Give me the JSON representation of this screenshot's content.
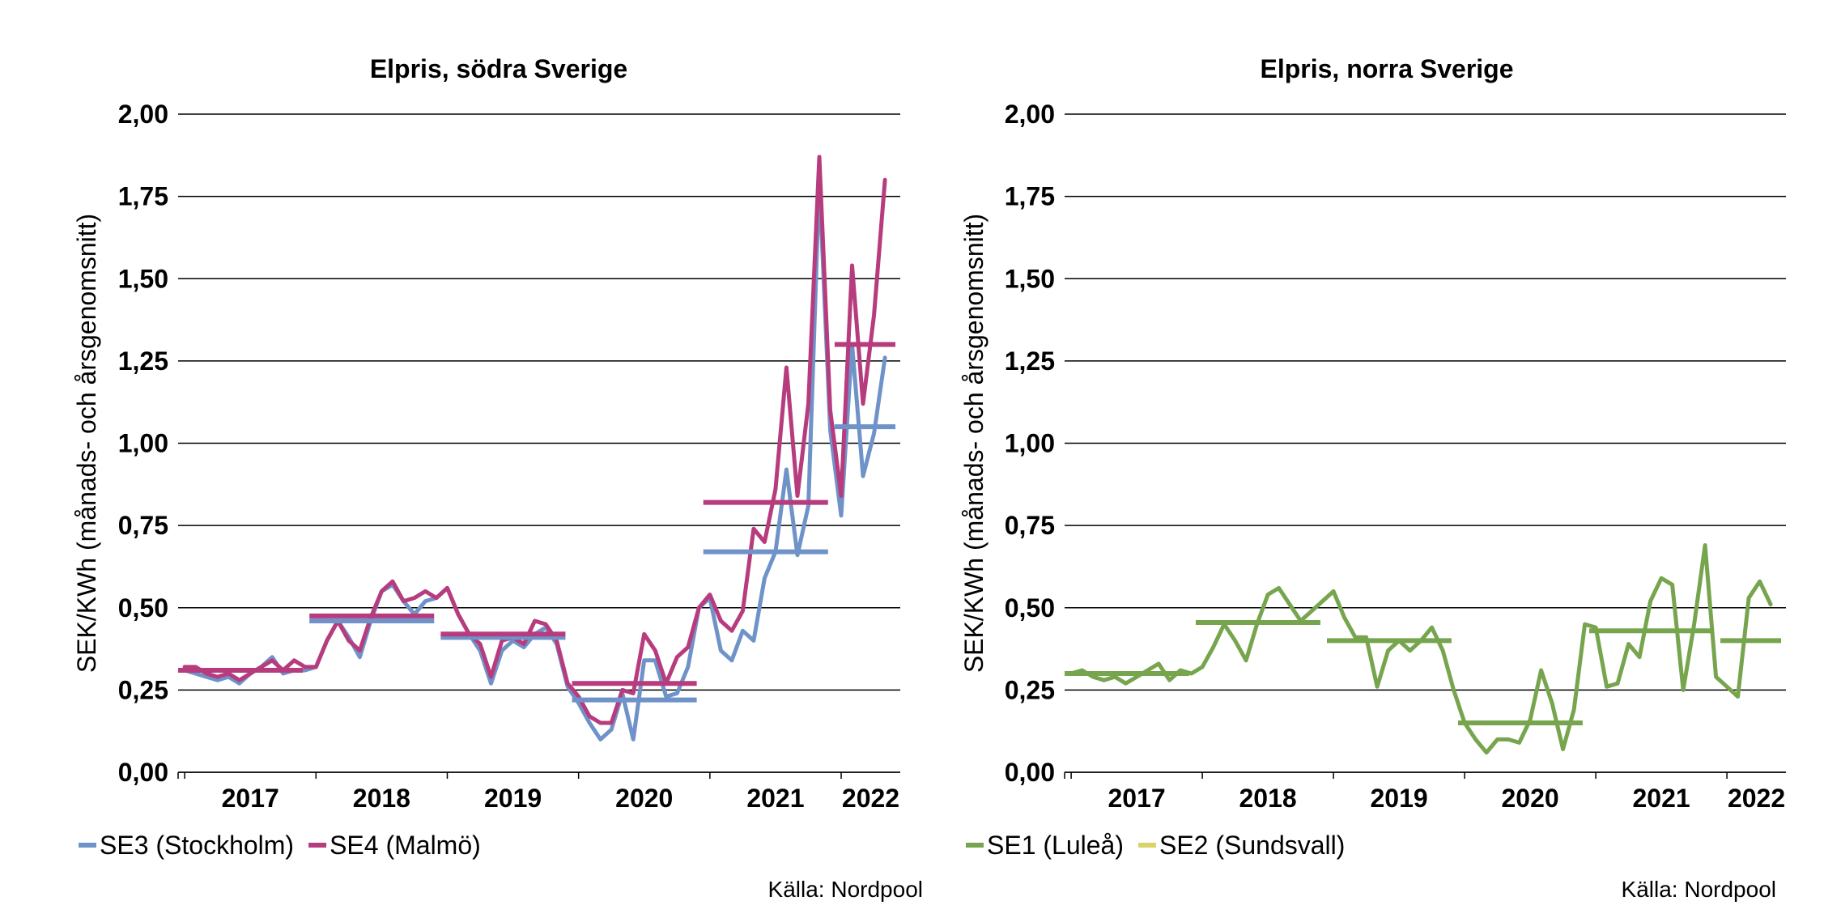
{
  "chart_data": [
    {
      "type": "line",
      "title": "Elpris, södra Sverige",
      "ylabel": "SEK/KWh (månads- och årsgenomsnitt)",
      "xlabel": "",
      "ylim": [
        0,
        2.0
      ],
      "y_ticks": [
        "0,00",
        "0,25",
        "0,50",
        "0,75",
        "1,00",
        "1,25",
        "1,50",
        "1,75",
        "2,00"
      ],
      "x_range": [
        2016.95,
        2022.45
      ],
      "x_ticks": [
        "2017",
        "2018",
        "2019",
        "2020",
        "2021",
        "2022"
      ],
      "grid": true,
      "legend_position": "bottom-left",
      "source": "Källa: Nordpool",
      "series": [
        {
          "name": "SE3 (Stockholm)",
          "color": "#6f93c9",
          "monthly": [
            0.31,
            0.3,
            0.29,
            0.28,
            0.29,
            0.27,
            0.3,
            0.32,
            0.35,
            0.3,
            0.31,
            0.31,
            0.32,
            0.4,
            0.46,
            0.41,
            0.35,
            0.46,
            0.55,
            0.57,
            0.52,
            0.48,
            0.52,
            0.53,
            0.56,
            0.48,
            0.42,
            0.37,
            0.27,
            0.37,
            0.4,
            0.38,
            0.42,
            0.44,
            0.39,
            0.26,
            0.21,
            0.15,
            0.1,
            0.13,
            0.24,
            0.1,
            0.34,
            0.34,
            0.23,
            0.24,
            0.32,
            0.5,
            0.53,
            0.37,
            0.34,
            0.43,
            0.4,
            0.59,
            0.67,
            0.92,
            0.66,
            0.81,
            1.8,
            1.04,
            0.78,
            1.3,
            0.9,
            1.03,
            1.26
          ],
          "yearly": [
            {
              "year": 2017,
              "value": 0.31
            },
            {
              "year": 2018,
              "value": 0.46
            },
            {
              "year": 2019,
              "value": 0.41
            },
            {
              "year": 2020,
              "value": 0.22
            },
            {
              "year": 2021,
              "value": 0.67
            },
            {
              "year": 2022,
              "value": 1.05
            }
          ]
        },
        {
          "name": "SE4 (Malmö)",
          "color": "#b73c7e",
          "monthly": [
            0.32,
            0.32,
            0.3,
            0.29,
            0.3,
            0.28,
            0.3,
            0.32,
            0.34,
            0.31,
            0.34,
            0.32,
            0.32,
            0.4,
            0.46,
            0.4,
            0.37,
            0.47,
            0.55,
            0.58,
            0.52,
            0.53,
            0.55,
            0.53,
            0.56,
            0.48,
            0.42,
            0.39,
            0.29,
            0.4,
            0.41,
            0.39,
            0.46,
            0.45,
            0.4,
            0.27,
            0.23,
            0.17,
            0.15,
            0.15,
            0.25,
            0.24,
            0.42,
            0.37,
            0.27,
            0.35,
            0.38,
            0.5,
            0.54,
            0.46,
            0.43,
            0.49,
            0.74,
            0.7,
            0.86,
            1.23,
            0.84,
            1.12,
            1.87,
            1.1,
            0.84,
            1.54,
            1.12,
            1.39,
            1.8
          ],
          "yearly": [
            {
              "year": 2017,
              "value": 0.31
            },
            {
              "year": 2018,
              "value": 0.475
            },
            {
              "year": 2019,
              "value": 0.42
            },
            {
              "year": 2020,
              "value": 0.27
            },
            {
              "year": 2021,
              "value": 0.82
            },
            {
              "year": 2022,
              "value": 1.3
            }
          ]
        }
      ]
    },
    {
      "type": "line",
      "title": "Elpris, norra Sverige",
      "ylabel": "SEK/KWh (månads- och årsgenomsnitt)",
      "xlabel": "",
      "ylim": [
        0,
        2.0
      ],
      "y_ticks": [
        "0,00",
        "0,25",
        "0,50",
        "0,75",
        "1,00",
        "1,25",
        "1,50",
        "1,75",
        "2,00"
      ],
      "x_range": [
        2016.95,
        2022.45
      ],
      "x_ticks": [
        "2017",
        "2018",
        "2019",
        "2020",
        "2021",
        "2022"
      ],
      "grid": true,
      "legend_position": "bottom-left",
      "source": "Källa: Nordpool",
      "series": [
        {
          "name": "SE1 (Luleå)",
          "color": "#77a54e",
          "monthly": [
            0.3,
            0.31,
            0.29,
            0.28,
            0.29,
            0.27,
            0.29,
            0.31,
            0.33,
            0.28,
            0.31,
            0.3,
            0.32,
            0.38,
            0.45,
            0.4,
            0.34,
            0.45,
            0.54,
            0.56,
            0.51,
            0.46,
            0.49,
            0.52,
            0.55,
            0.47,
            0.41,
            0.41,
            0.26,
            0.37,
            0.4,
            0.37,
            0.4,
            0.44,
            0.37,
            0.25,
            0.15,
            0.1,
            0.06,
            0.1,
            0.1,
            0.09,
            0.16,
            0.31,
            0.21,
            0.07,
            0.19,
            0.45,
            0.44,
            0.26,
            0.27,
            0.39,
            0.35,
            0.52,
            0.59,
            0.57,
            0.25,
            0.45,
            0.69,
            0.29,
            0.26,
            0.23,
            0.53,
            0.58,
            0.51
          ],
          "yearly": [
            {
              "year": 2017,
              "value": 0.3
            },
            {
              "year": 2018,
              "value": 0.455
            },
            {
              "year": 2019,
              "value": 0.4
            },
            {
              "year": 2020,
              "value": 0.15
            },
            {
              "year": 2021,
              "value": 0.43
            },
            {
              "year": 2022,
              "value": 0.4
            }
          ]
        },
        {
          "name": "SE2 (Sundsvall)",
          "color": "#d9d36a",
          "monthly": [],
          "yearly": []
        }
      ]
    }
  ]
}
